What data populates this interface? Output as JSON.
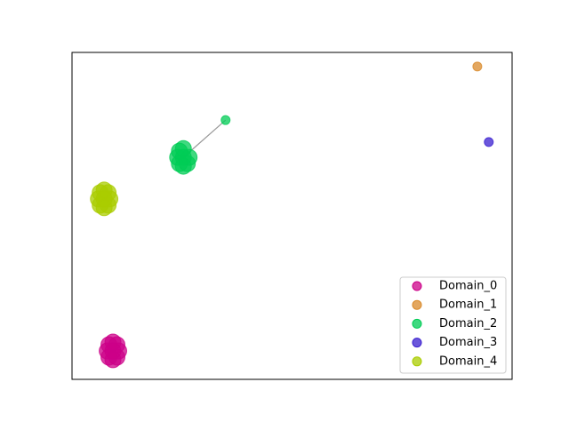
{
  "chart_data": {
    "type": "scatter",
    "xlim": [
      0,
      1
    ],
    "ylim": [
      0,
      1
    ],
    "legend": "lower right",
    "edges": [
      [
        [
          2,
          0
        ],
        [
          2,
          8
        ]
      ]
    ],
    "series": [
      {
        "name": "Domain_0",
        "color": "#cc0088",
        "x": [
          0.08,
          0.106,
          0.093,
          0.093,
          0.084,
          0.102,
          0.084,
          0.102,
          0.093
        ],
        "values": [
          0.087,
          0.087,
          0.06,
          0.114,
          0.068,
          0.068,
          0.106,
          0.106,
          0.087
        ]
      },
      {
        "name": "Domain_1",
        "color": "#d98a2b",
        "x": [
          0.921
        ],
        "values": [
          0.957
        ]
      },
      {
        "name": "Domain_2",
        "color": "#00cc55",
        "x": [
          0.253,
          0.24,
          0.266,
          0.253,
          0.253,
          0.244,
          0.262,
          0.244,
          0.349
        ],
        "values": [
          0.679,
          0.679,
          0.679,
          0.652,
          0.706,
          0.66,
          0.66,
          0.698,
          0.793
        ]
      },
      {
        "name": "Domain_3",
        "color": "#3a1fcf",
        "x": [
          0.947
        ],
        "values": [
          0.726
        ]
      },
      {
        "name": "Domain_4",
        "color": "#aacc00",
        "x": [
          0.06,
          0.086,
          0.073,
          0.073,
          0.064,
          0.082,
          0.064,
          0.082,
          0.073
        ],
        "values": [
          0.552,
          0.552,
          0.525,
          0.579,
          0.533,
          0.533,
          0.571,
          0.571,
          0.552
        ]
      }
    ]
  }
}
